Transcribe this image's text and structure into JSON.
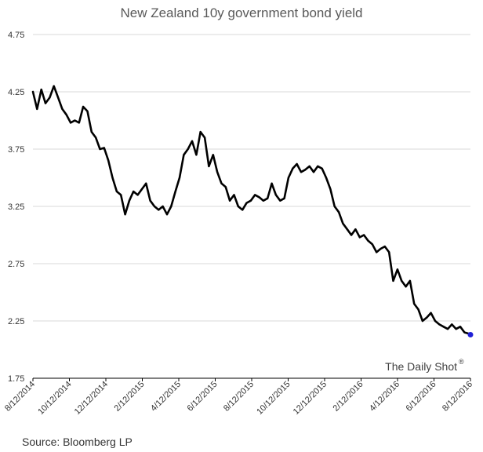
{
  "chart_data": {
    "type": "line",
    "title": "New Zealand 10y government bond yield",
    "xlabel": "",
    "ylabel": "",
    "ylim": [
      1.75,
      4.75
    ],
    "y_ticks": [
      "4.75",
      "4.25",
      "3.75",
      "3.25",
      "2.75",
      "2.25",
      "1.75"
    ],
    "x_ticks": [
      "8/12/2014",
      "10/12/2014",
      "12/12/2014",
      "2/12/2015",
      "4/12/2015",
      "6/12/2015",
      "8/12/2015",
      "10/12/2015",
      "12/12/2015",
      "2/12/2016",
      "4/12/2016",
      "6/12/2016",
      "8/12/2016"
    ],
    "grid": true,
    "series": [
      {
        "color": "#000000",
        "x": [
          "2014-08-12",
          "2014-08-19",
          "2014-08-26",
          "2014-09-02",
          "2014-09-09",
          "2014-09-16",
          "2014-09-23",
          "2014-09-30",
          "2014-10-07",
          "2014-10-14",
          "2014-10-21",
          "2014-10-28",
          "2014-11-04",
          "2014-11-11",
          "2014-11-18",
          "2014-11-25",
          "2014-12-02",
          "2014-12-09",
          "2014-12-16",
          "2014-12-23",
          "2014-12-30",
          "2015-01-06",
          "2015-01-13",
          "2015-01-20",
          "2015-01-27",
          "2015-02-03",
          "2015-02-10",
          "2015-02-17",
          "2015-02-24",
          "2015-03-03",
          "2015-03-10",
          "2015-03-17",
          "2015-03-24",
          "2015-03-31",
          "2015-04-07",
          "2015-04-14",
          "2015-04-21",
          "2015-04-28",
          "2015-05-05",
          "2015-05-12",
          "2015-05-19",
          "2015-05-26",
          "2015-06-02",
          "2015-06-09",
          "2015-06-16",
          "2015-06-23",
          "2015-06-30",
          "2015-07-07",
          "2015-07-14",
          "2015-07-21",
          "2015-07-28",
          "2015-08-04",
          "2015-08-11",
          "2015-08-18",
          "2015-08-25",
          "2015-09-01",
          "2015-09-08",
          "2015-09-15",
          "2015-09-22",
          "2015-09-29",
          "2015-10-06",
          "2015-10-13",
          "2015-10-20",
          "2015-10-27",
          "2015-11-03",
          "2015-11-10",
          "2015-11-17",
          "2015-11-24",
          "2015-12-01",
          "2015-12-08",
          "2015-12-15",
          "2015-12-22",
          "2015-12-29",
          "2016-01-05",
          "2016-01-12",
          "2016-01-19",
          "2016-01-26",
          "2016-02-02",
          "2016-02-09",
          "2016-02-16",
          "2016-02-23",
          "2016-03-01",
          "2016-03-08",
          "2016-03-15",
          "2016-03-22",
          "2016-03-29",
          "2016-04-05",
          "2016-04-12",
          "2016-04-19",
          "2016-04-26",
          "2016-05-03",
          "2016-05-10",
          "2016-05-17",
          "2016-05-24",
          "2016-05-31",
          "2016-06-07",
          "2016-06-14",
          "2016-06-21",
          "2016-06-28",
          "2016-07-05",
          "2016-07-12",
          "2016-07-19",
          "2016-07-26",
          "2016-08-02",
          "2016-08-09",
          "2016-08-12"
        ],
        "values": [
          4.25,
          4.1,
          4.27,
          4.15,
          4.2,
          4.3,
          4.2,
          4.1,
          4.05,
          3.98,
          4.0,
          3.98,
          4.12,
          4.08,
          3.9,
          3.85,
          3.75,
          3.76,
          3.65,
          3.5,
          3.38,
          3.35,
          3.18,
          3.3,
          3.38,
          3.35,
          3.4,
          3.45,
          3.3,
          3.25,
          3.22,
          3.25,
          3.18,
          3.25,
          3.38,
          3.5,
          3.7,
          3.75,
          3.82,
          3.7,
          3.9,
          3.85,
          3.6,
          3.7,
          3.55,
          3.45,
          3.42,
          3.3,
          3.35,
          3.25,
          3.22,
          3.28,
          3.3,
          3.35,
          3.33,
          3.3,
          3.32,
          3.45,
          3.35,
          3.3,
          3.32,
          3.5,
          3.58,
          3.62,
          3.55,
          3.57,
          3.6,
          3.55,
          3.6,
          3.58,
          3.5,
          3.4,
          3.25,
          3.2,
          3.1,
          3.05,
          3.0,
          3.05,
          2.98,
          3.0,
          2.95,
          2.92,
          2.85,
          2.88,
          2.9,
          2.85,
          2.6,
          2.7,
          2.6,
          2.55,
          2.6,
          2.4,
          2.35,
          2.25,
          2.28,
          2.32,
          2.25,
          2.22,
          2.2,
          2.18,
          2.22,
          2.18,
          2.2,
          2.15,
          2.14,
          2.13
        ]
      }
    ],
    "end_marker_color": "#1f1fd6"
  },
  "watermark": {
    "text": "The Daily Shot",
    "mark": "®"
  },
  "source": "Source: Bloomberg LP"
}
